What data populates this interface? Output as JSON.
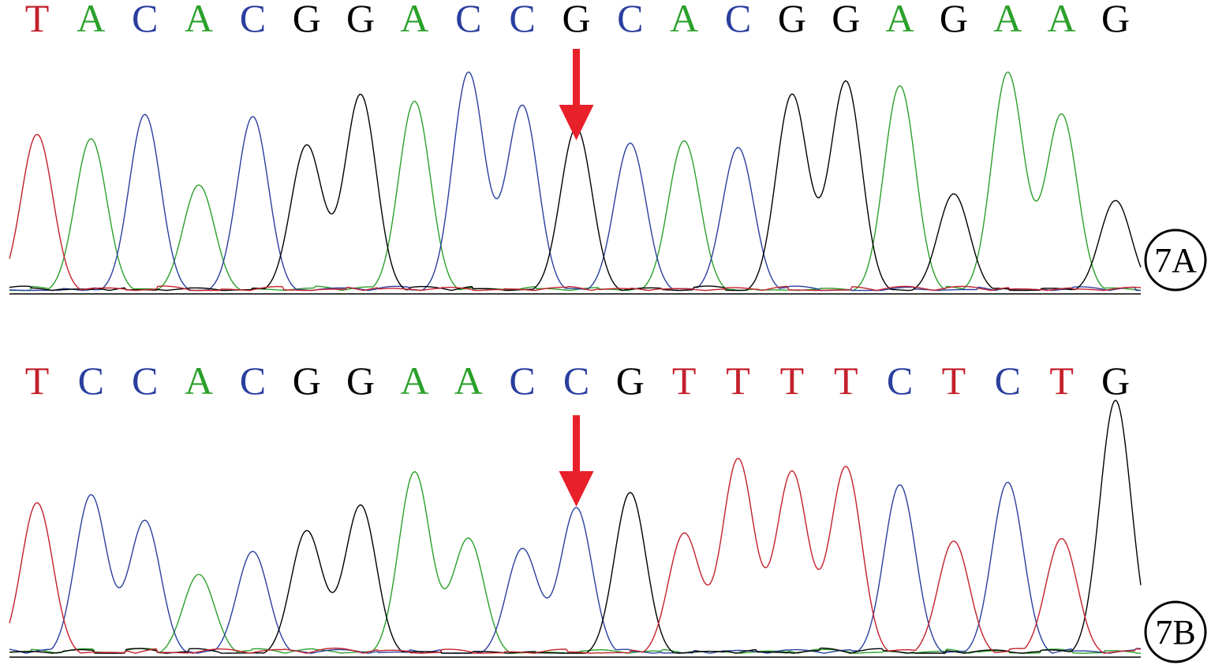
{
  "chart_data": [
    {
      "type": "line",
      "panel_label": "7A",
      "sequence": [
        "T",
        "A",
        "C",
        "A",
        "C",
        "G",
        "G",
        "A",
        "C",
        "C",
        "G",
        "C",
        "A",
        "C",
        "G",
        "G",
        "A",
        "G",
        "A",
        "A",
        "G"
      ],
      "marker": {
        "type": "arrow",
        "base_index": 10,
        "color": "#e8202a"
      },
      "peaks": [
        {
          "base": "T",
          "h": 0.72
        },
        {
          "base": "A",
          "h": 0.7
        },
        {
          "base": "C",
          "h": 0.81
        },
        {
          "base": "A",
          "h": 0.49
        },
        {
          "base": "C",
          "h": 0.8
        },
        {
          "base": "G",
          "h": 0.67
        },
        {
          "base": "G",
          "h": 0.9
        },
        {
          "base": "A",
          "h": 0.87
        },
        {
          "base": "C",
          "h": 1.0
        },
        {
          "base": "C",
          "h": 0.85
        },
        {
          "base": "G",
          "h": 0.75
        },
        {
          "base": "C",
          "h": 0.68
        },
        {
          "base": "A",
          "h": 0.69
        },
        {
          "base": "C",
          "h": 0.66
        },
        {
          "base": "G",
          "h": 0.9
        },
        {
          "base": "G",
          "h": 0.96
        },
        {
          "base": "A",
          "h": 0.94
        },
        {
          "base": "G",
          "h": 0.45
        },
        {
          "base": "A",
          "h": 1.0
        },
        {
          "base": "A",
          "h": 0.81
        },
        {
          "base": "G",
          "h": 0.42
        }
      ]
    },
    {
      "type": "line",
      "panel_label": "7B",
      "sequence": [
        "T",
        "C",
        "C",
        "A",
        "C",
        "G",
        "G",
        "A",
        "A",
        "C",
        "C",
        "G",
        "T",
        "T",
        "T",
        "T",
        "C",
        "T",
        "C",
        "T",
        "G"
      ],
      "marker": {
        "type": "arrow",
        "base_index": 10,
        "color": "#e8202a"
      },
      "peaks": [
        {
          "base": "T",
          "h": 0.6
        },
        {
          "base": "C",
          "h": 0.63
        },
        {
          "base": "C",
          "h": 0.53
        },
        {
          "base": "A",
          "h": 0.32
        },
        {
          "base": "C",
          "h": 0.41
        },
        {
          "base": "G",
          "h": 0.49
        },
        {
          "base": "G",
          "h": 0.59
        },
        {
          "base": "A",
          "h": 0.72
        },
        {
          "base": "A",
          "h": 0.46
        },
        {
          "base": "C",
          "h": 0.42
        },
        {
          "base": "C",
          "h": 0.58
        },
        {
          "base": "G",
          "h": 0.64
        },
        {
          "base": "T",
          "h": 0.48
        },
        {
          "base": "T",
          "h": 0.77
        },
        {
          "base": "T",
          "h": 0.72
        },
        {
          "base": "T",
          "h": 0.74
        },
        {
          "base": "C",
          "h": 0.67
        },
        {
          "base": "T",
          "h": 0.45
        },
        {
          "base": "C",
          "h": 0.68
        },
        {
          "base": "T",
          "h": 0.46
        },
        {
          "base": "G",
          "h": 1.0
        }
      ]
    }
  ],
  "colors": {
    "A": "#2aa02a",
    "C": "#2a3f9e",
    "G": "#000000",
    "T": "#c4202c"
  }
}
